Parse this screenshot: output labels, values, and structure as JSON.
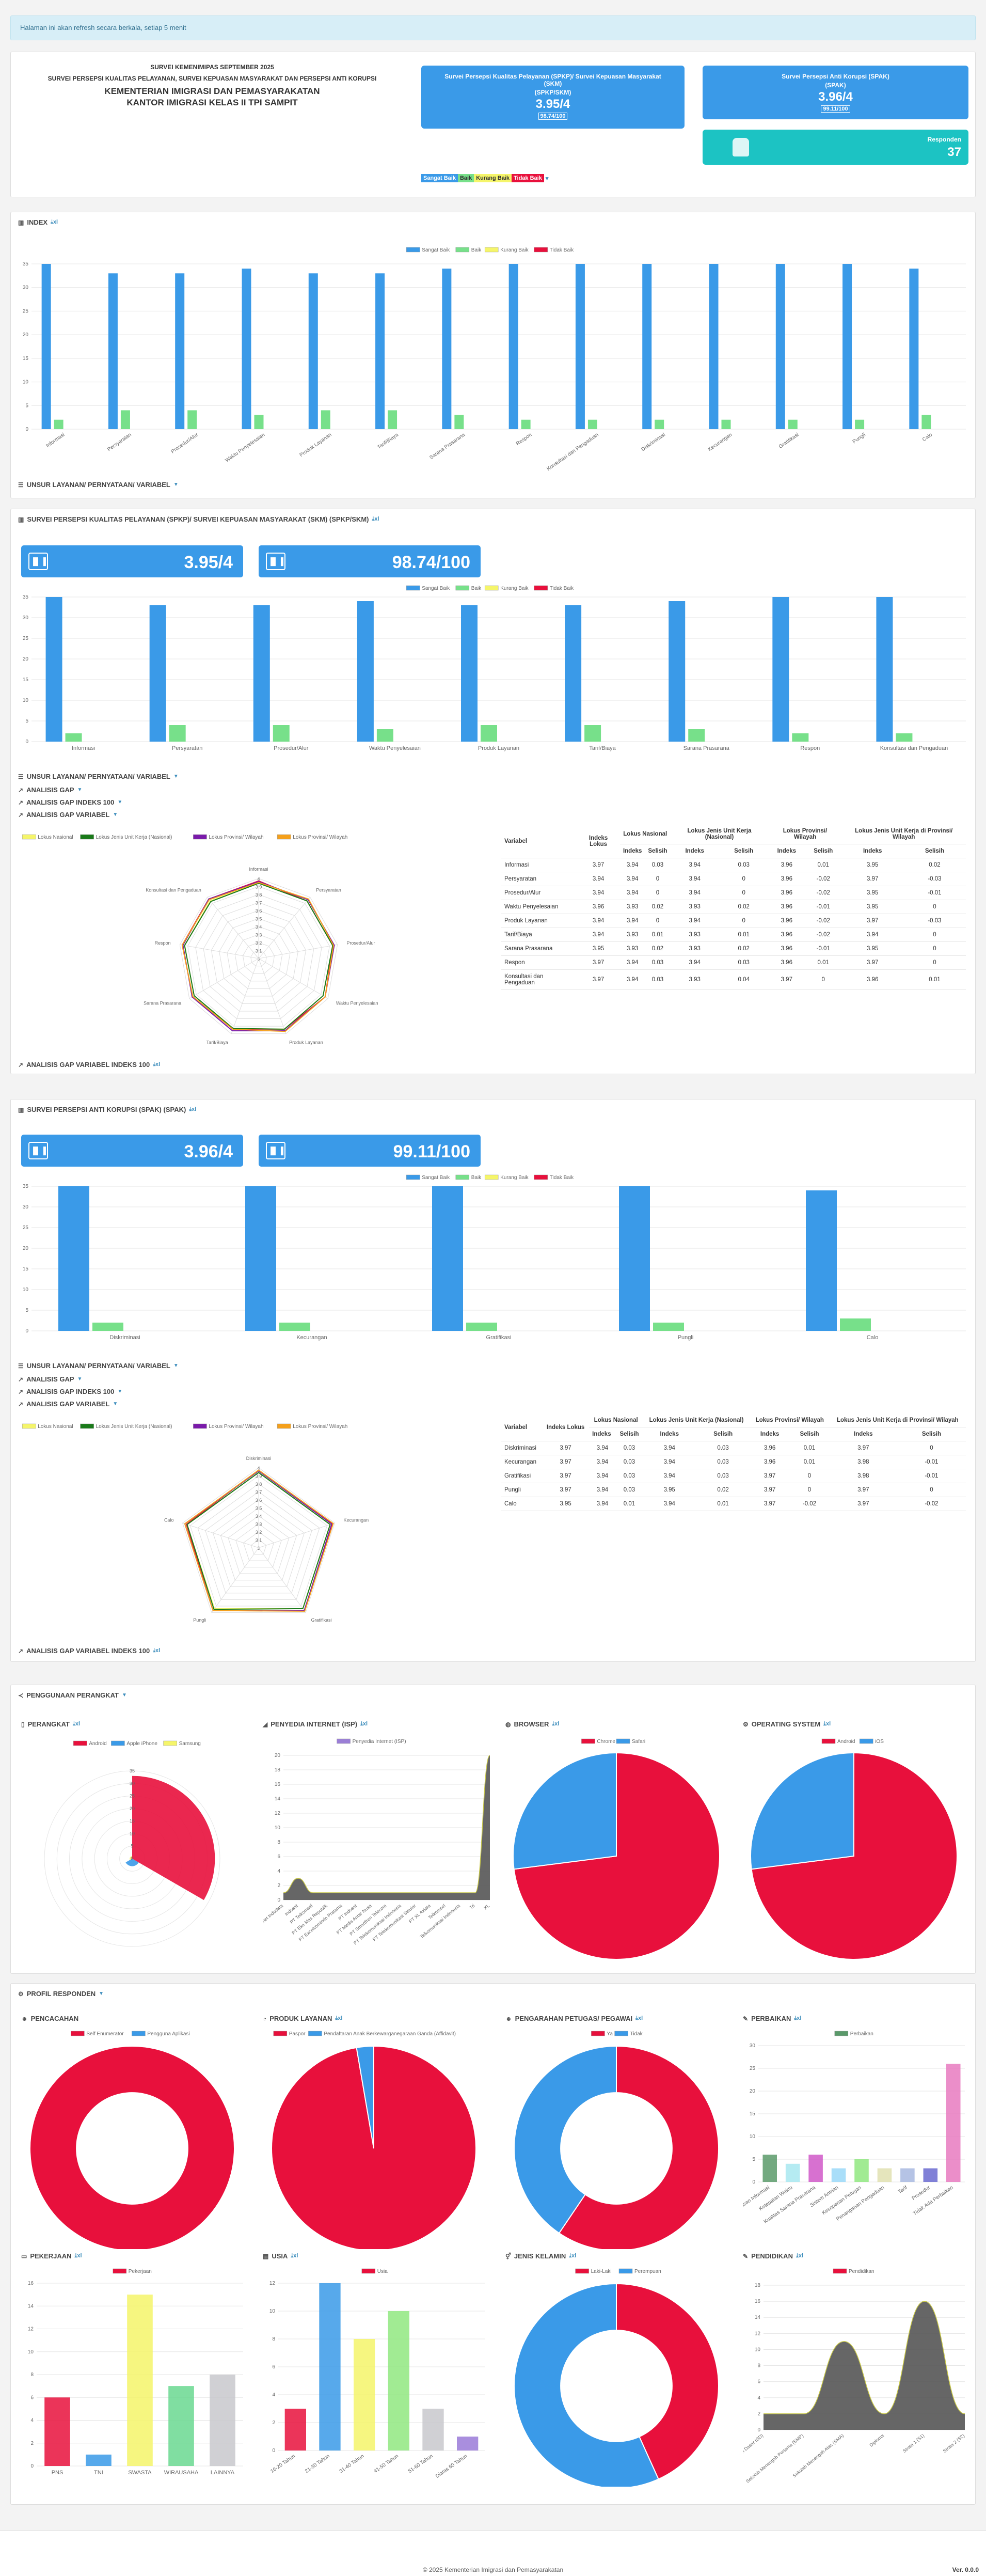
{
  "notice": "Halaman ini akan refresh secara berkala, setiap 5 menit",
  "header": {
    "line1": "SURVEI KEMENIMIPAS SEPTEMBER 2025",
    "line2": "SURVEI PERSEPSI KUALITAS PELAYANAN, SURVEI KEPUASAN MASYARAKAT DAN PERSEPSI ANTI KORUPSI",
    "line3": "KEMENTERIAN IMIGRASI DAN PEMASYARAKATAN",
    "line4": "KANTOR IMIGRASI KELAS II TPI SAMPIT",
    "card1": {
      "title": "Survei Persepsi Kualitas Pelayanan (SPKP)/ Survei Kepuasan Masyarakat (SKM)",
      "sub": "(SPKP/SKM)",
      "value": "3.95/4",
      "badge": "98.74/100"
    },
    "card2": {
      "title": "Survei Persepsi Anti Korupsi (SPAK)",
      "sub": "(SPAK)",
      "value": "3.96/4",
      "badge": "99.11/100"
    },
    "card3": {
      "label": "Responden",
      "value": "37"
    },
    "legend": [
      "Sangat Baik",
      "Baik",
      "Kurang Baik",
      "Tidak Baik"
    ]
  },
  "colors": {
    "sb": "#3a9ae8",
    "b": "#77e08a",
    "kb": "#f5f56a",
    "tb": "#e8103c"
  },
  "index_section": {
    "title": "INDEX",
    "footer": "UNSUR LAYANAN/ PERNYATAAN/ VARIABEL"
  },
  "legend4": [
    "Sangat Baik",
    "Baik",
    "Kurang Baik",
    "Tidak Baik"
  ],
  "chart_data": [
    {
      "type": "bar",
      "categories": [
        "Informasi",
        "Persyaratan",
        "Prosedur/Alur",
        "Waktu Penyelesaian",
        "Produk Layanan",
        "Tarif/Biaya",
        "Sarana Prasarana",
        "Respon",
        "Konsultasi dan Pengaduan",
        "Diskriminasi",
        "Kecurangan",
        "Gratifikasi",
        "Pungli",
        "Calo"
      ],
      "series": [
        {
          "name": "Sangat Baik",
          "values": [
            35,
            33,
            33,
            34,
            33,
            33,
            34,
            35,
            35,
            35,
            35,
            35,
            35,
            34
          ]
        },
        {
          "name": "Baik",
          "values": [
            2,
            4,
            4,
            3,
            4,
            4,
            3,
            2,
            2,
            2,
            2,
            2,
            2,
            3
          ]
        },
        {
          "name": "Kurang Baik",
          "values": [
            0,
            0,
            0,
            0,
            0,
            0,
            0,
            0,
            0,
            0,
            0,
            0,
            0,
            0
          ]
        },
        {
          "name": "Tidak Baik",
          "values": [
            0,
            0,
            0,
            0,
            0,
            0,
            0,
            0,
            0,
            0,
            0,
            0,
            0,
            0
          ]
        }
      ],
      "ylim": [
        0,
        35
      ]
    },
    {
      "type": "bar",
      "categories": [
        "Informasi",
        "Persyaratan",
        "Prosedur/Alur",
        "Waktu Penyelesaian",
        "Produk Layanan",
        "Tarif/Biaya",
        "Sarana Prasarana",
        "Respon",
        "Konsultasi dan Pengaduan"
      ],
      "series": [
        {
          "name": "Sangat Baik",
          "values": [
            35,
            33,
            33,
            34,
            33,
            33,
            34,
            35,
            35
          ]
        },
        {
          "name": "Baik",
          "values": [
            2,
            4,
            4,
            3,
            4,
            4,
            3,
            2,
            2
          ]
        },
        {
          "name": "Kurang Baik",
          "values": [
            0,
            0,
            0,
            0,
            0,
            0,
            0,
            0,
            0
          ]
        },
        {
          "name": "Tidak Baik",
          "values": [
            0,
            0,
            0,
            0,
            0,
            0,
            0,
            0,
            0
          ]
        }
      ],
      "ylim": [
        0,
        35
      ]
    },
    {
      "type": "radar",
      "categories": [
        "Informasi",
        "Persyaratan",
        "Prosedur/Alur",
        "Waktu Penyelesaian",
        "Produk Layanan",
        "Tarif/Biaya",
        "Sarana Prasarana",
        "Respon",
        "Konsultasi dan Pengaduan"
      ],
      "series": [
        {
          "name": "Indeks Lokus",
          "values": [
            3.97,
            3.94,
            3.94,
            3.96,
            3.94,
            3.94,
            3.95,
            3.97,
            3.97
          ]
        },
        {
          "name": "Lokus Nasional",
          "values": [
            3.94,
            3.94,
            3.94,
            3.93,
            3.94,
            3.93,
            3.93,
            3.94,
            3.94
          ]
        },
        {
          "name": "Lokus Jenis Unit Kerja (Nasional)",
          "values": [
            3.94,
            3.94,
            3.94,
            3.93,
            3.94,
            3.93,
            3.93,
            3.94,
            3.93
          ]
        },
        {
          "name": "Lokus Provinsi/ Wilayah",
          "values": [
            3.96,
            3.96,
            3.96,
            3.96,
            3.96,
            3.96,
            3.96,
            3.96,
            3.97
          ]
        },
        {
          "name": "Lokus Provinsi/ Wilayah",
          "values": [
            3.95,
            3.97,
            3.95,
            3.96,
            3.97,
            3.94,
            3.95,
            3.97,
            3.96
          ]
        }
      ],
      "ylim": [
        3,
        4
      ]
    },
    {
      "type": "bar",
      "categories": [
        "Diskriminasi",
        "Kecurangan",
        "Gratifikasi",
        "Pungli",
        "Calo"
      ],
      "series": [
        {
          "name": "Sangat Baik",
          "values": [
            35,
            35,
            35,
            35,
            34
          ]
        },
        {
          "name": "Baik",
          "values": [
            2,
            2,
            2,
            2,
            3
          ]
        },
        {
          "name": "Kurang Baik",
          "values": [
            0,
            0,
            0,
            0,
            0
          ]
        },
        {
          "name": "Tidak Baik",
          "values": [
            0,
            0,
            0,
            0,
            0
          ]
        }
      ],
      "ylim": [
        0,
        35
      ]
    },
    {
      "type": "radar",
      "categories": [
        "Diskriminasi",
        "Kecurangan",
        "Gratifikasi",
        "Pungli",
        "Calo"
      ],
      "series": [
        {
          "name": "Indeks Lokus",
          "values": [
            3.97,
            3.97,
            3.97,
            3.97,
            3.95
          ]
        },
        {
          "name": "Lokus Nasional",
          "values": [
            3.94,
            3.94,
            3.94,
            3.94,
            3.94
          ]
        },
        {
          "name": "Lokus Jenis Unit Kerja (Nasional)",
          "values": [
            3.94,
            3.94,
            3.94,
            3.95,
            3.94
          ]
        },
        {
          "name": "Lokus Provinsi/ Wilayah",
          "values": [
            3.96,
            3.96,
            3.97,
            3.97,
            3.97
          ]
        },
        {
          "name": "Lokus Provinsi/ Wilayah",
          "values": [
            3.97,
            3.98,
            3.98,
            3.97,
            3.97
          ]
        }
      ],
      "ylim": [
        3,
        4
      ]
    },
    {
      "type": "pie",
      "title": "PERANGKAT",
      "categories": [
        "Android",
        "Apple iPhone",
        "Samsung"
      ],
      "values": [
        33,
        3,
        1
      ]
    },
    {
      "type": "area",
      "title": "PENYEDIA INTERNET (ISP)",
      "series": [
        {
          "name": "Penyedia Internet (ISP)",
          "values": [
            1,
            3,
            1,
            1,
            1,
            1,
            1,
            1,
            1,
            1,
            1,
            1,
            1,
            1,
            20
          ]
        }
      ]
    },
    {
      "type": "pie",
      "title": "BROWSER",
      "categories": [
        "Chrome",
        "Safari"
      ],
      "values": [
        27,
        10
      ]
    },
    {
      "type": "pie",
      "title": "OPERATING SYSTEM",
      "categories": [
        "Android",
        "iOS"
      ],
      "values": [
        27,
        10
      ]
    },
    {
      "type": "pie",
      "title": "PENCACAHAN",
      "categories": [
        "Self Enumerator",
        "Pengguna Aplikasi"
      ],
      "values": [
        37,
        0
      ]
    },
    {
      "type": "pie",
      "title": "PRODUK LAYANAN",
      "categories": [
        "Paspor",
        "Pendaftaran Anak Berkewarganegaraan Ganda (Affidavit)"
      ],
      "values": [
        36,
        1
      ]
    },
    {
      "type": "pie",
      "title": "PENGARAHAN PETUGAS/ PEGAWAI",
      "categories": [
        "Ya",
        "Tidak"
      ],
      "values": [
        22,
        15
      ]
    },
    {
      "type": "bar",
      "title": "PERBAIKAN",
      "series": [
        {
          "name": "Perbaikan",
          "values": [
            6,
            4,
            6,
            3,
            5,
            3,
            3,
            3,
            26
          ]
        }
      ],
      "ylim": [
        0,
        30
      ]
    },
    {
      "type": "bar",
      "title": "PEKERJAAN",
      "categories": [
        "PNS",
        "TNI",
        "SWASTA",
        "WIRAUSAHA",
        "LAINNYA"
      ],
      "series": [
        {
          "name": "Pekerjaan",
          "values": [
            6,
            1,
            15,
            7,
            8
          ]
        }
      ],
      "ylim": [
        0,
        16
      ]
    },
    {
      "type": "bar",
      "title": "USIA",
      "categories": [
        "16-20 Tahun",
        "21-30 Tahun",
        "31-40 Tahun",
        "41-50 Tahun",
        "51-60 Tahun",
        "Diatas 60 Tahun"
      ],
      "series": [
        {
          "name": "Usia",
          "values": [
            3,
            12,
            8,
            10,
            3,
            1
          ]
        }
      ],
      "ylim": [
        0,
        12
      ]
    },
    {
      "type": "pie",
      "title": "JENIS KELAMIN",
      "categories": [
        "Laki-Laki",
        "Perempuan"
      ],
      "values": [
        16,
        21
      ]
    },
    {
      "type": "area",
      "title": "PENDIDIKAN",
      "categories": [
        "Sekolah Dasar (SD)",
        "Sekolah Menengah Pertama (SMP)",
        "Sekolah Menengah Atas (SMA)",
        "Diploma",
        "Strata 1 (S1)",
        "Strata 2 (S2)"
      ],
      "series": [
        {
          "name": "Pendidikan",
          "values": [
            2,
            2,
            11,
            2,
            16,
            2
          ]
        }
      ],
      "ylim": [
        0,
        18
      ]
    }
  ],
  "radar_labels": {
    "ticks": [
      "4",
      "3.9",
      "3.8",
      "3.7",
      "3.6",
      "3.5",
      "3.4",
      "3.3",
      "3.2",
      "3.1",
      "3"
    ],
    "legend": [
      "Indeks Lokus",
      "Lokus Nasional",
      "Lokus Jenis Unit Kerja (Nasional)",
      "Lokus Provinsi/ Wilayah",
      "Lokus Provinsi/ Wilayah"
    ]
  },
  "spkp": {
    "title": "SURVEI PERSEPSI KUALITAS PELAYANAN (SPKP)/ SURVEI KEPUASAN MASYARAKAT (SKM) (SPKP/SKM)",
    "score4": "3.95/4",
    "score100": "98.74/100",
    "unsur": "UNSUR LAYANAN/ PERNYATAAN/ VARIABEL",
    "gap": "ANALISIS GAP",
    "gap100": "ANALISIS GAP INDEKS 100",
    "gapvar": "ANALISIS GAP VARIABEL",
    "gapvar100": "ANALISIS GAP VARIABEL INDEKS 100",
    "table": {
      "h1": [
        "Variabel",
        "Indeks Lokus",
        "Lokus Nasional",
        "Lokus Jenis Unit Kerja (Nasional)",
        "Lokus Provinsi/ Wilayah",
        "Lokus Jenis Unit Kerja di Provinsi/ Wilayah"
      ],
      "h2": [
        "Indeks",
        "Selisih",
        "Indeks",
        "Selisih",
        "Indeks",
        "Selisih",
        "Indeks",
        "Selisih"
      ],
      "rows": [
        [
          "Informasi",
          "3.97",
          "3.94",
          "0.03",
          "3.94",
          "0.03",
          "3.96",
          "0.01",
          "3.95",
          "0.02"
        ],
        [
          "Persyaratan",
          "3.94",
          "3.94",
          "0",
          "3.94",
          "0",
          "3.96",
          "-0.02",
          "3.97",
          "-0.03"
        ],
        [
          "Prosedur/Alur",
          "3.94",
          "3.94",
          "0",
          "3.94",
          "0",
          "3.96",
          "-0.02",
          "3.95",
          "-0.01"
        ],
        [
          "Waktu Penyelesaian",
          "3.96",
          "3.93",
          "0.02",
          "3.93",
          "0.02",
          "3.96",
          "-0.01",
          "3.95",
          "0"
        ],
        [
          "Produk Layanan",
          "3.94",
          "3.94",
          "0",
          "3.94",
          "0",
          "3.96",
          "-0.02",
          "3.97",
          "-0.03"
        ],
        [
          "Tarif/Biaya",
          "3.94",
          "3.93",
          "0.01",
          "3.93",
          "0.01",
          "3.96",
          "-0.02",
          "3.94",
          "0"
        ],
        [
          "Sarana Prasarana",
          "3.95",
          "3.93",
          "0.02",
          "3.93",
          "0.02",
          "3.96",
          "-0.01",
          "3.95",
          "0"
        ],
        [
          "Respon",
          "3.97",
          "3.94",
          "0.03",
          "3.94",
          "0.03",
          "3.96",
          "0.01",
          "3.97",
          "0"
        ],
        [
          "Konsultasi dan Pengaduan",
          "3.97",
          "3.94",
          "0.03",
          "3.93",
          "0.04",
          "3.97",
          "0",
          "3.96",
          "0.01"
        ]
      ]
    }
  },
  "spak": {
    "title": "SURVEI PERSEPSI ANTI KORUPSI (SPAK) (SPAK)",
    "score4": "3.96/4",
    "score100": "99.11/100",
    "unsur": "UNSUR LAYANAN/ PERNYATAAN/ VARIABEL",
    "gap": "ANALISIS GAP",
    "gap100": "ANALISIS GAP INDEKS 100",
    "gapvar": "ANALISIS GAP VARIABEL",
    "gapvar100": "ANALISIS GAP VARIABEL INDEKS 100",
    "table": {
      "h1": [
        "Variabel",
        "Indeks Lokus",
        "Lokus Nasional",
        "Lokus Jenis Unit Kerja (Nasional)",
        "Lokus Provinsi/ Wilayah",
        "Lokus Jenis Unit Kerja di Provinsi/ Wilayah"
      ],
      "h2": [
        "Indeks",
        "Selisih",
        "Indeks",
        "Selisih",
        "Indeks",
        "Selisih",
        "Indeks",
        "Selisih"
      ],
      "rows": [
        [
          "Diskriminasi",
          "3.97",
          "3.94",
          "0.03",
          "3.94",
          "0.03",
          "3.96",
          "0.01",
          "3.97",
          "0"
        ],
        [
          "Kecurangan",
          "3.97",
          "3.94",
          "0.03",
          "3.94",
          "0.03",
          "3.96",
          "0.01",
          "3.98",
          "-0.01"
        ],
        [
          "Gratifikasi",
          "3.97",
          "3.94",
          "0.03",
          "3.94",
          "0.03",
          "3.97",
          "0",
          "3.98",
          "-0.01"
        ],
        [
          "Pungli",
          "3.97",
          "3.94",
          "0.03",
          "3.95",
          "0.02",
          "3.97",
          "0",
          "3.97",
          "0"
        ],
        [
          "Calo",
          "3.95",
          "3.94",
          "0.01",
          "3.94",
          "0.01",
          "3.97",
          "-0.02",
          "3.97",
          "-0.02"
        ]
      ]
    }
  },
  "penggunaan": {
    "title": "PENGGUNAAN PERANGKAT",
    "perangkat": "PERANGKAT",
    "isp": "PENYEDIA INTERNET (ISP)",
    "browser": "BROWSER",
    "os": "OPERATING SYSTEM",
    "isp_ticks": [
      "20",
      "18",
      "16",
      "14",
      "12",
      "10",
      "8",
      "6",
      "4",
      "2",
      "0"
    ],
    "isp_labels": [
      "Hypernet Indodata",
      "Indosat",
      "PT Telkomsel",
      "PT Eka Mas Republik",
      "PT Excelcomindo Pratama",
      "PT Indosat",
      "PT Media Antar Nusa",
      "PT Smartfren Telecom",
      "PT Telekomunikasi Indonesia",
      "PT Telekomunikasi Selular",
      "PT XL Axiata",
      "Telkomsel",
      "Telkomunikasi Indonesia",
      "Tri",
      "XL"
    ]
  },
  "profil": {
    "title": "PROFIL RESPONDEN",
    "pencacahan": "PENCACAHAN",
    "produk": "PRODUK LAYANAN",
    "pengarahan": "PENGARAHAN PETUGAS/ PEGAWAI",
    "perbaikan": "PERBAIKAN",
    "pekerjaan": "PEKERJAAN",
    "usia": "USIA",
    "jk": "JENIS KELAMIN",
    "pendidikan": "PENDIDIKAN",
    "perbaikan_labels": [
      "Kejelasan Informasi",
      "Ketepatan Waktu",
      "Kualitas Sarana Prasarana",
      "Sistem Antrian",
      "Kesopanan Petugas",
      "Penanganan Pengaduan",
      "Tarif",
      "Prosedur",
      "Tidak Ada Perbaikan"
    ]
  },
  "footer": {
    "copyright": "© 2025 Kementerian Imigrasi dan Pemasyarakatan",
    "version": "Ver. 0.0.0"
  }
}
